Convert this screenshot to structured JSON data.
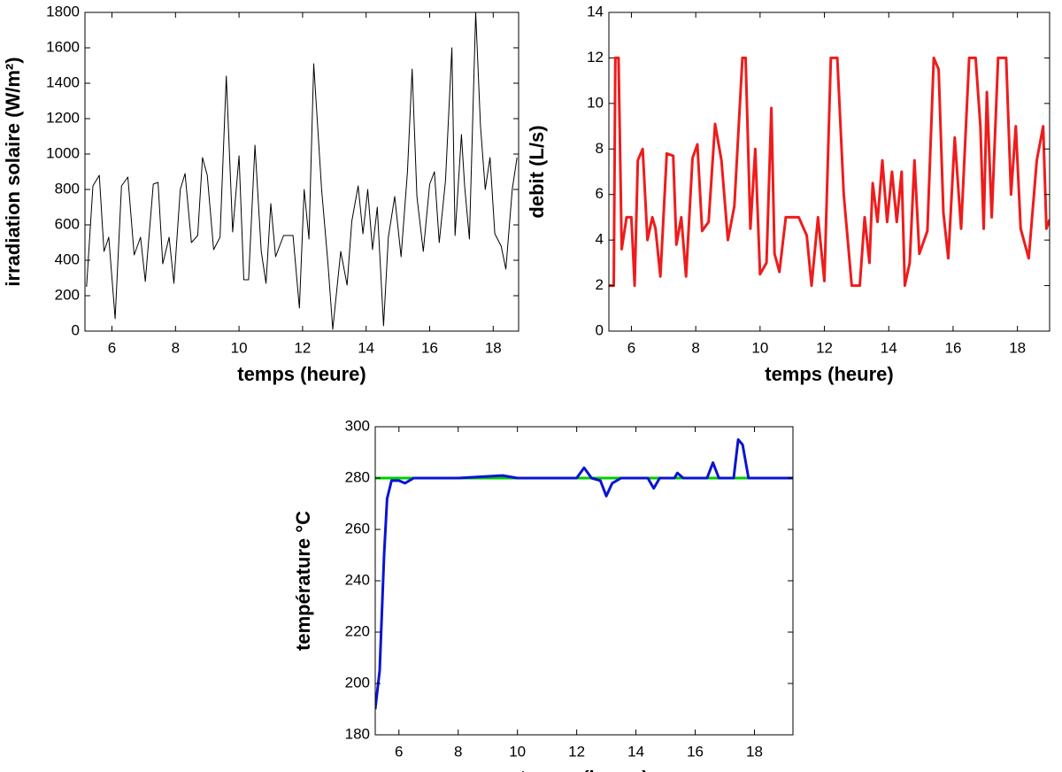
{
  "chart_data": [
    {
      "type": "line",
      "x_label": "temps (heure)",
      "y_label": "irradiation solaire (W/m²)",
      "xlim": [
        5.15,
        18.8
      ],
      "ylim": [
        0,
        1800
      ],
      "xticks": [
        6,
        8,
        10,
        12,
        14,
        16,
        18
      ],
      "yticks": [
        0,
        200,
        400,
        600,
        800,
        1000,
        1200,
        1400,
        1600,
        1800
      ],
      "series": [
        {
          "color": "#000000",
          "x": [
            5.2,
            5.4,
            5.6,
            5.75,
            5.9,
            6.1,
            6.3,
            6.5,
            6.7,
            6.9,
            7.05,
            7.3,
            7.45,
            7.6,
            7.8,
            7.95,
            8.15,
            8.3,
            8.5,
            8.7,
            8.85,
            9.0,
            9.2,
            9.4,
            9.6,
            9.8,
            10.0,
            10.15,
            10.3,
            10.5,
            10.7,
            10.85,
            11.0,
            11.15,
            11.4,
            11.7,
            11.9,
            12.05,
            12.2,
            12.35,
            12.6,
            12.8,
            12.95,
            13.2,
            13.4,
            13.55,
            13.75,
            13.9,
            14.05,
            14.2,
            14.35,
            14.55,
            14.7,
            14.9,
            15.1,
            15.3,
            15.45,
            15.6,
            15.8,
            16.0,
            16.15,
            16.3,
            16.5,
            16.7,
            16.8,
            17.0,
            17.1,
            17.25,
            17.45,
            17.6,
            17.75,
            17.9,
            18.05,
            18.25,
            18.4,
            18.6,
            18.75
          ],
          "values": [
            250,
            820,
            880,
            450,
            530,
            70,
            820,
            870,
            430,
            530,
            280,
            830,
            840,
            380,
            530,
            270,
            800,
            890,
            500,
            540,
            980,
            880,
            460,
            530,
            1440,
            560,
            990,
            290,
            290,
            1050,
            450,
            270,
            720,
            420,
            540,
            540,
            130,
            800,
            520,
            1510,
            800,
            380,
            10,
            450,
            260,
            620,
            820,
            550,
            800,
            460,
            700,
            30,
            530,
            760,
            420,
            900,
            1480,
            760,
            450,
            830,
            900,
            500,
            850,
            1600,
            540,
            1110,
            820,
            520,
            1800,
            1160,
            800,
            980,
            550,
            480,
            350,
            800,
            980
          ]
        }
      ]
    },
    {
      "type": "line",
      "x_label": "temps (heure)",
      "y_label": "debit (L/s)",
      "xlim": [
        5.3,
        19.0
      ],
      "ylim": [
        0,
        14
      ],
      "xticks": [
        6,
        8,
        10,
        12,
        14,
        16,
        18
      ],
      "yticks": [
        0,
        2,
        4,
        6,
        8,
        10,
        12,
        14
      ],
      "series": [
        {
          "color": "#ee1c1c",
          "x": [
            5.3,
            5.45,
            5.5,
            5.6,
            5.7,
            5.85,
            6.0,
            6.1,
            6.2,
            6.35,
            6.5,
            6.65,
            6.75,
            6.9,
            7.1,
            7.3,
            7.4,
            7.55,
            7.7,
            7.9,
            8.05,
            8.2,
            8.4,
            8.6,
            8.8,
            9.0,
            9.2,
            9.45,
            9.55,
            9.7,
            9.85,
            10.0,
            10.2,
            10.35,
            10.45,
            10.6,
            10.8,
            11.2,
            11.45,
            11.6,
            11.8,
            12.0,
            12.2,
            12.4,
            12.6,
            12.85,
            13.1,
            13.25,
            13.4,
            13.5,
            13.65,
            13.8,
            13.95,
            14.1,
            14.25,
            14.4,
            14.5,
            14.65,
            14.8,
            14.95,
            15.2,
            15.4,
            15.55,
            15.7,
            15.85,
            16.05,
            16.25,
            16.5,
            16.7,
            16.85,
            16.95,
            17.05,
            17.2,
            17.4,
            17.65,
            17.8,
            17.95,
            18.1,
            18.35,
            18.6,
            18.8,
            18.9,
            19.0
          ],
          "values": [
            2,
            2,
            12,
            12,
            3.6,
            5,
            5,
            2,
            7.5,
            8,
            4,
            5,
            4.5,
            2.4,
            7.8,
            7.7,
            3.8,
            5,
            2.4,
            7.6,
            8.2,
            4.4,
            4.8,
            9.1,
            7.5,
            4,
            5.5,
            12,
            12,
            4.5,
            8,
            2.5,
            3,
            9.8,
            3.4,
            2.6,
            5,
            5,
            4.2,
            2,
            5,
            2.2,
            12,
            12,
            6,
            2,
            2,
            5,
            3,
            6.5,
            4.8,
            7.5,
            4.8,
            7,
            4.8,
            7,
            2,
            3,
            7.5,
            3.4,
            4.4,
            12,
            11.5,
            5.2,
            3.2,
            8.5,
            4.5,
            12,
            12,
            9,
            4.5,
            10.5,
            5,
            12,
            12,
            6,
            9,
            4.5,
            3.2,
            7.5,
            9,
            4.5,
            4.9
          ]
        }
      ]
    },
    {
      "type": "line",
      "x_label": "temps (heure)",
      "y_label": "température °C",
      "xlim": [
        5.2,
        19.3
      ],
      "ylim": [
        180,
        300
      ],
      "xticks": [
        6,
        8,
        10,
        12,
        14,
        16,
        18
      ],
      "yticks": [
        180,
        200,
        220,
        240,
        260,
        280,
        300
      ],
      "series": [
        {
          "color": "#00cc00",
          "x": [
            5.2,
            19.3
          ],
          "values": [
            280,
            280
          ]
        },
        {
          "color": "#0a14d2",
          "x": [
            5.2,
            5.35,
            5.5,
            5.6,
            5.75,
            6.0,
            6.2,
            6.5,
            7,
            8,
            9.5,
            10,
            12,
            12.25,
            12.5,
            12.8,
            13.0,
            13.2,
            13.5,
            14.4,
            14.6,
            14.8,
            15.3,
            15.4,
            15.6,
            16.4,
            16.6,
            16.8,
            17.3,
            17.45,
            17.6,
            17.8,
            19.3
          ],
          "values": [
            190,
            205,
            250,
            272,
            279,
            279,
            278,
            280,
            280,
            280,
            281,
            280,
            280,
            284,
            280,
            279,
            273,
            278,
            280,
            280,
            276,
            280,
            280,
            282,
            280,
            280,
            286,
            280,
            280,
            295,
            293,
            280,
            280
          ]
        }
      ]
    }
  ]
}
